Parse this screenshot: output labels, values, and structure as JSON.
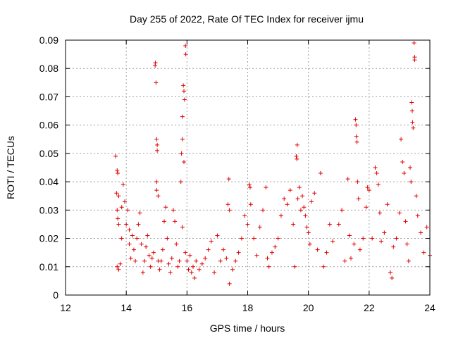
{
  "chart_data": {
    "type": "scatter",
    "title": "Day 255 of 2022, Rate Of TEC Index for receiver ijmu",
    "xlabel": "GPS time / hours",
    "ylabel": "ROTI / TECUs",
    "xlim": [
      12,
      24
    ],
    "ylim": [
      0,
      0.09
    ],
    "xticks": [
      "12",
      "14",
      "16",
      "18",
      "20",
      "22",
      "24"
    ],
    "yticks": [
      "0",
      "0.01",
      "0.02",
      "0.03",
      "0.04",
      "0.05",
      "0.06",
      "0.07",
      "0.08",
      "0.09"
    ],
    "grid": true,
    "marker": "+",
    "color": "#e00000",
    "series": [
      {
        "name": "ROTI",
        "points": [
          [
            13.65,
            0.049
          ],
          [
            13.7,
            0.044
          ],
          [
            13.72,
            0.043
          ],
          [
            13.68,
            0.036
          ],
          [
            13.75,
            0.035
          ],
          [
            13.7,
            0.03
          ],
          [
            13.72,
            0.027
          ],
          [
            13.75,
            0.025
          ],
          [
            13.7,
            0.01
          ],
          [
            13.75,
            0.009
          ],
          [
            13.8,
            0.011
          ],
          [
            13.85,
            0.02
          ],
          [
            13.85,
            0.031
          ],
          [
            13.9,
            0.039
          ],
          [
            13.95,
            0.033
          ],
          [
            14.0,
            0.025
          ],
          [
            14.05,
            0.03
          ],
          [
            14.1,
            0.023
          ],
          [
            14.1,
            0.018
          ],
          [
            14.15,
            0.013
          ],
          [
            14.2,
            0.021
          ],
          [
            14.25,
            0.016
          ],
          [
            14.3,
            0.012
          ],
          [
            14.35,
            0.02
          ],
          [
            14.4,
            0.025
          ],
          [
            14.45,
            0.029
          ],
          [
            14.5,
            0.018
          ],
          [
            14.55,
            0.008
          ],
          [
            14.6,
            0.012
          ],
          [
            14.65,
            0.017
          ],
          [
            14.7,
            0.021
          ],
          [
            14.75,
            0.014
          ],
          [
            14.8,
            0.01
          ],
          [
            14.85,
            0.013
          ],
          [
            14.9,
            0.015
          ],
          [
            14.95,
            0.081
          ],
          [
            14.96,
            0.082
          ],
          [
            14.98,
            0.075
          ],
          [
            15.0,
            0.055
          ],
          [
            15.02,
            0.053
          ],
          [
            15.02,
            0.051
          ],
          [
            15.0,
            0.037
          ],
          [
            15.05,
            0.035
          ],
          [
            15.0,
            0.04
          ],
          [
            15.05,
            0.012
          ],
          [
            15.1,
            0.009
          ],
          [
            15.15,
            0.012
          ],
          [
            15.2,
            0.016
          ],
          [
            15.25,
            0.026
          ],
          [
            15.3,
            0.031
          ],
          [
            15.35,
            0.02
          ],
          [
            15.4,
            0.011
          ],
          [
            15.45,
            0.008
          ],
          [
            15.5,
            0.013
          ],
          [
            15.55,
            0.03
          ],
          [
            15.6,
            0.026
          ],
          [
            15.65,
            0.018
          ],
          [
            15.7,
            0.01
          ],
          [
            15.75,
            0.012
          ],
          [
            15.8,
            0.04
          ],
          [
            15.82,
            0.05
          ],
          [
            15.85,
            0.055
          ],
          [
            15.85,
            0.063
          ],
          [
            15.88,
            0.074
          ],
          [
            15.9,
            0.072
          ],
          [
            15.92,
            0.069
          ],
          [
            15.95,
            0.088
          ],
          [
            15.96,
            0.085
          ],
          [
            15.9,
            0.047
          ],
          [
            15.85,
            0.024
          ],
          [
            15.95,
            0.015
          ],
          [
            16.0,
            0.012
          ],
          [
            16.05,
            0.009
          ],
          [
            16.1,
            0.014
          ],
          [
            16.15,
            0.008
          ],
          [
            16.2,
            0.01
          ],
          [
            16.25,
            0.006
          ],
          [
            16.3,
            0.012
          ],
          [
            16.4,
            0.009
          ],
          [
            16.5,
            0.011
          ],
          [
            16.6,
            0.013
          ],
          [
            16.7,
            0.016
          ],
          [
            16.8,
            0.019
          ],
          [
            16.9,
            0.008
          ],
          [
            17.0,
            0.021
          ],
          [
            17.1,
            0.012
          ],
          [
            17.2,
            0.016
          ],
          [
            17.3,
            0.013
          ],
          [
            17.35,
            0.032
          ],
          [
            17.38,
            0.041
          ],
          [
            17.4,
            0.03
          ],
          [
            17.4,
            0.004
          ],
          [
            17.5,
            0.009
          ],
          [
            17.6,
            0.012
          ],
          [
            17.7,
            0.015
          ],
          [
            17.8,
            0.02
          ],
          [
            17.9,
            0.028
          ],
          [
            18.0,
            0.025
          ],
          [
            18.05,
            0.039
          ],
          [
            18.08,
            0.038
          ],
          [
            18.1,
            0.032
          ],
          [
            18.2,
            0.02
          ],
          [
            18.3,
            0.014
          ],
          [
            18.4,
            0.024
          ],
          [
            18.5,
            0.03
          ],
          [
            18.6,
            0.038
          ],
          [
            18.65,
            0.013
          ],
          [
            18.7,
            0.01
          ],
          [
            18.8,
            0.015
          ],
          [
            18.9,
            0.017
          ],
          [
            19.0,
            0.02
          ],
          [
            19.1,
            0.028
          ],
          [
            19.2,
            0.034
          ],
          [
            19.3,
            0.032
          ],
          [
            19.4,
            0.037
          ],
          [
            19.5,
            0.025
          ],
          [
            19.55,
            0.01
          ],
          [
            19.6,
            0.049
          ],
          [
            19.62,
            0.048
          ],
          [
            19.63,
            0.053
          ],
          [
            19.65,
            0.034
          ],
          [
            19.7,
            0.038
          ],
          [
            19.75,
            0.03
          ],
          [
            19.8,
            0.035
          ],
          [
            19.85,
            0.031
          ],
          [
            19.9,
            0.028
          ],
          [
            19.95,
            0.024
          ],
          [
            20.0,
            0.022
          ],
          [
            20.05,
            0.018
          ],
          [
            20.1,
            0.033
          ],
          [
            20.2,
            0.036
          ],
          [
            20.3,
            0.016
          ],
          [
            20.4,
            0.043
          ],
          [
            20.5,
            0.01
          ],
          [
            20.6,
            0.015
          ],
          [
            20.7,
            0.025
          ],
          [
            20.8,
            0.019
          ],
          [
            21.0,
            0.025
          ],
          [
            21.1,
            0.03
          ],
          [
            21.2,
            0.012
          ],
          [
            21.3,
            0.041
          ],
          [
            21.35,
            0.021
          ],
          [
            21.4,
            0.013
          ],
          [
            21.5,
            0.018
          ],
          [
            21.55,
            0.062
          ],
          [
            21.57,
            0.06
          ],
          [
            21.58,
            0.056
          ],
          [
            21.6,
            0.054
          ],
          [
            21.62,
            0.04
          ],
          [
            21.65,
            0.034
          ],
          [
            21.7,
            0.016
          ],
          [
            21.8,
            0.02
          ],
          [
            21.9,
            0.031
          ],
          [
            21.95,
            0.038
          ],
          [
            22.0,
            0.037
          ],
          [
            22.1,
            0.02
          ],
          [
            22.2,
            0.045
          ],
          [
            22.25,
            0.043
          ],
          [
            22.3,
            0.039
          ],
          [
            22.35,
            0.029
          ],
          [
            22.4,
            0.019
          ],
          [
            22.5,
            0.022
          ],
          [
            22.6,
            0.032
          ],
          [
            22.7,
            0.008
          ],
          [
            22.75,
            0.006
          ],
          [
            22.8,
            0.017
          ],
          [
            22.9,
            0.02
          ],
          [
            23.0,
            0.029
          ],
          [
            23.05,
            0.055
          ],
          [
            23.1,
            0.047
          ],
          [
            23.15,
            0.043
          ],
          [
            23.2,
            0.026
          ],
          [
            23.25,
            0.018
          ],
          [
            23.3,
            0.012
          ],
          [
            23.35,
            0.045
          ],
          [
            23.38,
            0.04
          ],
          [
            23.4,
            0.068
          ],
          [
            23.42,
            0.065
          ],
          [
            23.43,
            0.061
          ],
          [
            23.45,
            0.059
          ],
          [
            23.48,
            0.089
          ],
          [
            23.5,
            0.084
          ],
          [
            23.5,
            0.083
          ],
          [
            23.55,
            0.035
          ],
          [
            23.6,
            0.028
          ],
          [
            23.7,
            0.022
          ],
          [
            23.8,
            0.015
          ],
          [
            23.9,
            0.024
          ],
          [
            24.0,
            0.014
          ]
        ]
      }
    ]
  }
}
